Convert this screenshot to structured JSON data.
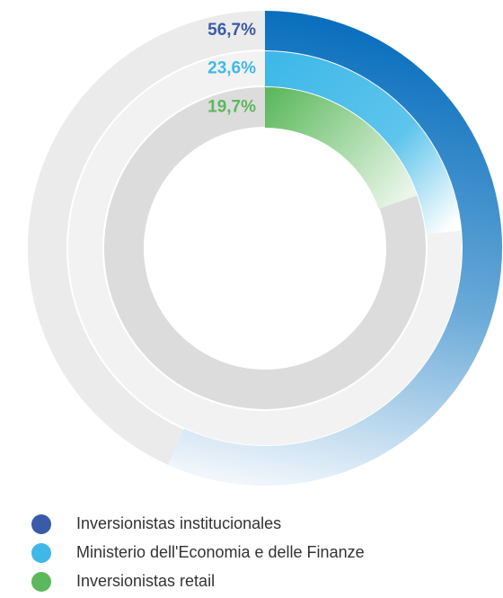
{
  "chart_data": {
    "type": "radial_bar",
    "categories": [
      "Inversionistas institucionales",
      "Ministerio dell'Economia e delle Finanze",
      "Inversionistas retail"
    ],
    "values": [
      56.7,
      23.6,
      19.7
    ],
    "value_labels": [
      "56,7%",
      "23,6%",
      "19,7%"
    ],
    "colors": [
      "#3a5ba8",
      "#3fb8e8",
      "#5cb85c"
    ],
    "ylim": [
      0,
      100
    ]
  }
}
